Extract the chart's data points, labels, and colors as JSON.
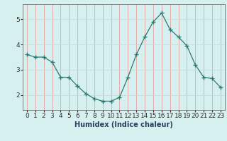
{
  "x": [
    0,
    1,
    2,
    3,
    4,
    5,
    6,
    7,
    8,
    9,
    10,
    11,
    12,
    13,
    14,
    15,
    16,
    17,
    18,
    19,
    20,
    21,
    22,
    23
  ],
  "y": [
    3.6,
    3.5,
    3.5,
    3.3,
    2.7,
    2.7,
    2.35,
    2.05,
    1.85,
    1.75,
    1.75,
    1.9,
    2.7,
    3.6,
    4.3,
    4.9,
    5.25,
    4.6,
    4.3,
    3.95,
    3.2,
    2.7,
    2.65,
    2.3
  ],
  "line_color": "#2d7a70",
  "marker": "+",
  "marker_size": 4,
  "marker_linewidth": 1.0,
  "bg_color": "#d6efef",
  "vgrid_color": "#e8a0a0",
  "hgrid_color": "#c0dede",
  "xlabel": "Humidex (Indice chaleur)",
  "xlim": [
    -0.5,
    23.5
  ],
  "ylim": [
    1.4,
    5.6
  ],
  "yticks": [
    2,
    3,
    4,
    5
  ],
  "xtick_labels": [
    "0",
    "1",
    "2",
    "3",
    "4",
    "5",
    "6",
    "7",
    "8",
    "9",
    "10",
    "11",
    "12",
    "13",
    "14",
    "15",
    "16",
    "17",
    "18",
    "19",
    "20",
    "21",
    "22",
    "23"
  ],
  "label_fontsize": 7,
  "tick_fontsize": 6.5,
  "line_width": 0.9,
  "spine_color": "#555555"
}
